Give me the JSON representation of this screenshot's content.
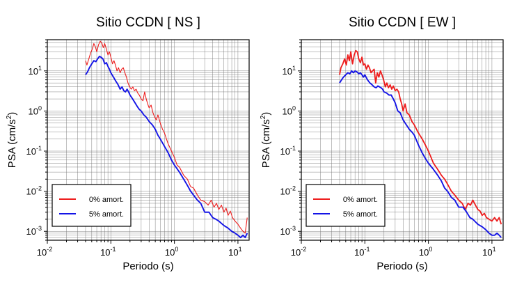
{
  "chart_data": [
    {
      "type": "line",
      "title": "Sitio CCDN [ NS ]",
      "xlabel": "Periodo (s)",
      "ylabel_main": "PSA (cm/s",
      "ylabel_sup": "2",
      "ylabel_end": ")",
      "x_scale": "log",
      "y_scale": "log",
      "xlim": [
        0.01,
        15
      ],
      "ylim": [
        0.0006,
        60
      ],
      "grid": true,
      "legend": "bottom-left",
      "x_ticks": [
        {
          "base": "10",
          "exp": "-2",
          "value": 0.01
        },
        {
          "base": "10",
          "exp": "-1",
          "value": 0.1
        },
        {
          "base": "10",
          "exp": "0",
          "value": 1
        },
        {
          "base": "10",
          "exp": "1",
          "value": 10
        }
      ],
      "y_ticks": [
        {
          "base": "10",
          "exp": "-3",
          "value": 0.001
        },
        {
          "base": "10",
          "exp": "-2",
          "value": 0.01
        },
        {
          "base": "10",
          "exp": "-1",
          "value": 0.1
        },
        {
          "base": "10",
          "exp": "0",
          "value": 1
        },
        {
          "base": "10",
          "exp": "1",
          "value": 10
        }
      ],
      "series": [
        {
          "name": "0% amort.",
          "color": "#ee1c1c",
          "x": [
            0.04,
            0.042,
            0.045,
            0.048,
            0.051,
            0.054,
            0.057,
            0.06,
            0.064,
            0.068,
            0.072,
            0.076,
            0.08,
            0.085,
            0.09,
            0.095,
            0.1,
            0.106,
            0.112,
            0.118,
            0.125,
            0.132,
            0.14,
            0.148,
            0.157,
            0.166,
            0.176,
            0.186,
            0.197,
            0.21,
            0.222,
            0.235,
            0.25,
            0.265,
            0.28,
            0.3,
            0.32,
            0.34,
            0.36,
            0.38,
            0.4,
            0.43,
            0.46,
            0.49,
            0.52,
            0.55,
            0.6,
            0.65,
            0.7,
            0.75,
            0.8,
            0.9,
            1.0,
            1.1,
            1.2,
            1.4,
            1.6,
            1.8,
            2.0,
            2.3,
            2.6,
            3.0,
            3.4,
            3.8,
            4.2,
            4.6,
            5.0,
            5.5,
            6.0,
            6.5,
            7.0,
            7.6,
            8.2,
            9.0,
            10.0,
            11.0,
            12.0,
            13.0,
            14.0
          ],
          "y": [
            18,
            14,
            20,
            28,
            35,
            48,
            40,
            30,
            45,
            55,
            50,
            38,
            48,
            35,
            25,
            30,
            22,
            15,
            18,
            14,
            10,
            12,
            9,
            11,
            12,
            9,
            7,
            5,
            4,
            3.5,
            4,
            3.2,
            3.5,
            2.8,
            2.5,
            2.0,
            1.8,
            3.0,
            2.0,
            1.5,
            1.2,
            1.4,
            0.9,
            0.7,
            0.6,
            0.8,
            0.5,
            0.35,
            0.28,
            0.2,
            0.15,
            0.1,
            0.07,
            0.045,
            0.04,
            0.025,
            0.02,
            0.013,
            0.012,
            0.008,
            0.006,
            0.0055,
            0.0045,
            0.006,
            0.004,
            0.005,
            0.0035,
            0.0045,
            0.003,
            0.0038,
            0.0025,
            0.0032,
            0.0022,
            0.0018,
            0.0015,
            0.0012,
            0.001,
            0.0009,
            0.0022
          ]
        },
        {
          "name": "5% amort.",
          "color": "#1414e6",
          "x": [
            0.04,
            0.043,
            0.046,
            0.05,
            0.054,
            0.058,
            0.062,
            0.066,
            0.07,
            0.075,
            0.08,
            0.085,
            0.09,
            0.095,
            0.1,
            0.11,
            0.12,
            0.13,
            0.14,
            0.15,
            0.16,
            0.17,
            0.18,
            0.19,
            0.2,
            0.22,
            0.24,
            0.26,
            0.28,
            0.3,
            0.33,
            0.36,
            0.4,
            0.45,
            0.5,
            0.55,
            0.6,
            0.7,
            0.8,
            0.9,
            1.0,
            1.2,
            1.4,
            1.6,
            1.8,
            2.0,
            2.3,
            2.6,
            3.0,
            3.5,
            4.0,
            4.5,
            5.0,
            6.0,
            7.0,
            8.0,
            9.0,
            10.0,
            11.0,
            12.0,
            13.0,
            14.0
          ],
          "y": [
            8,
            9.5,
            12,
            15,
            18,
            17,
            20,
            23,
            22,
            20,
            15,
            16,
            13,
            11,
            9,
            7,
            5.5,
            4.5,
            3.5,
            4,
            3.2,
            3.0,
            3.5,
            3.0,
            2.5,
            2.0,
            1.6,
            1.3,
            1.1,
            1.0,
            0.8,
            0.7,
            0.55,
            0.45,
            0.35,
            0.25,
            0.2,
            0.13,
            0.09,
            0.06,
            0.045,
            0.03,
            0.02,
            0.014,
            0.01,
            0.008,
            0.006,
            0.005,
            0.003,
            0.003,
            0.0022,
            0.002,
            0.0018,
            0.0014,
            0.0012,
            0.001,
            0.0009,
            0.0008,
            0.0007,
            0.0008,
            0.0007,
            0.0009
          ]
        }
      ]
    },
    {
      "type": "line",
      "title": "Sitio CCDN [ EW ]",
      "xlabel": "Periodo (s)",
      "ylabel_main": "PSA (cm/s",
      "ylabel_sup": "2",
      "ylabel_end": ")",
      "x_scale": "log",
      "y_scale": "log",
      "xlim": [
        0.01,
        15
      ],
      "ylim": [
        0.0006,
        60
      ],
      "grid": true,
      "legend": "bottom-left",
      "x_ticks": [
        {
          "base": "10",
          "exp": "-2",
          "value": 0.01
        },
        {
          "base": "10",
          "exp": "-1",
          "value": 0.1
        },
        {
          "base": "10",
          "exp": "0",
          "value": 1
        },
        {
          "base": "10",
          "exp": "1",
          "value": 10
        }
      ],
      "y_ticks": [
        {
          "base": "10",
          "exp": "-3",
          "value": 0.001
        },
        {
          "base": "10",
          "exp": "-2",
          "value": 0.01
        },
        {
          "base": "10",
          "exp": "-1",
          "value": 0.1
        },
        {
          "base": "10",
          "exp": "0",
          "value": 1
        },
        {
          "base": "10",
          "exp": "1",
          "value": 10
        }
      ],
      "series": [
        {
          "name": "0% amort.",
          "color": "#ee1c1c",
          "x": [
            0.04,
            0.042,
            0.045,
            0.048,
            0.051,
            0.054,
            0.057,
            0.06,
            0.064,
            0.068,
            0.072,
            0.076,
            0.08,
            0.085,
            0.09,
            0.095,
            0.1,
            0.106,
            0.112,
            0.118,
            0.125,
            0.132,
            0.14,
            0.148,
            0.157,
            0.166,
            0.176,
            0.186,
            0.197,
            0.21,
            0.222,
            0.235,
            0.25,
            0.265,
            0.28,
            0.3,
            0.32,
            0.34,
            0.36,
            0.38,
            0.4,
            0.43,
            0.46,
            0.5,
            0.55,
            0.6,
            0.65,
            0.7,
            0.8,
            0.9,
            1.0,
            1.1,
            1.2,
            1.4,
            1.6,
            1.8,
            2.0,
            2.3,
            2.6,
            3.0,
            3.4,
            3.8,
            4.2,
            4.6,
            5.0,
            5.5,
            6.0,
            6.5,
            7.0,
            7.6,
            8.2,
            9.0,
            10.0,
            11.0,
            12.0,
            13.0,
            14.0
          ],
          "y": [
            8,
            12,
            15,
            20,
            14,
            25,
            18,
            30,
            15,
            25,
            32,
            30,
            20,
            16,
            22,
            14,
            15,
            11,
            14,
            12,
            9,
            10,
            11,
            5,
            9,
            7,
            10,
            8,
            6,
            4,
            5,
            3.8,
            4.5,
            3.5,
            4.2,
            3.2,
            3.5,
            3.0,
            2.0,
            1.5,
            1.0,
            1.5,
            0.9,
            0.8,
            0.55,
            0.45,
            0.35,
            0.28,
            0.2,
            0.14,
            0.1,
            0.07,
            0.05,
            0.035,
            0.025,
            0.02,
            0.015,
            0.01,
            0.008,
            0.006,
            0.005,
            0.0035,
            0.005,
            0.0045,
            0.006,
            0.0045,
            0.0035,
            0.0032,
            0.0025,
            0.0028,
            0.0022,
            0.002,
            0.0018,
            0.0022,
            0.0018,
            0.0022,
            0.0015
          ]
        },
        {
          "name": "5% amort.",
          "color": "#1414e6",
          "x": [
            0.04,
            0.043,
            0.046,
            0.05,
            0.054,
            0.058,
            0.062,
            0.066,
            0.07,
            0.075,
            0.08,
            0.085,
            0.09,
            0.095,
            0.1,
            0.11,
            0.12,
            0.13,
            0.14,
            0.15,
            0.16,
            0.17,
            0.18,
            0.19,
            0.2,
            0.22,
            0.24,
            0.26,
            0.28,
            0.3,
            0.33,
            0.36,
            0.4,
            0.45,
            0.5,
            0.55,
            0.6,
            0.7,
            0.8,
            0.9,
            1.0,
            1.2,
            1.4,
            1.6,
            1.8,
            2.0,
            2.3,
            2.6,
            3.0,
            3.5,
            4.0,
            4.5,
            5.0,
            6.0,
            7.0,
            8.0,
            9.0,
            10.0,
            11.0,
            12.0,
            13.0,
            14.0
          ],
          "y": [
            5,
            6,
            7,
            8,
            9,
            8.5,
            10,
            9,
            10,
            9.5,
            8.5,
            9,
            8,
            7,
            8,
            6,
            5,
            4.5,
            4,
            3.8,
            4.2,
            4.0,
            3.8,
            3.5,
            3.0,
            2.8,
            2.5,
            2.5,
            2.0,
            1.6,
            1.0,
            0.9,
            0.6,
            0.45,
            0.35,
            0.3,
            0.25,
            0.14,
            0.09,
            0.065,
            0.05,
            0.035,
            0.025,
            0.018,
            0.012,
            0.01,
            0.007,
            0.006,
            0.004,
            0.004,
            0.003,
            0.0022,
            0.002,
            0.0015,
            0.0013,
            0.0011,
            0.0009,
            0.0008,
            0.0008,
            0.0009,
            0.0008,
            0.0007
          ]
        }
      ]
    }
  ]
}
